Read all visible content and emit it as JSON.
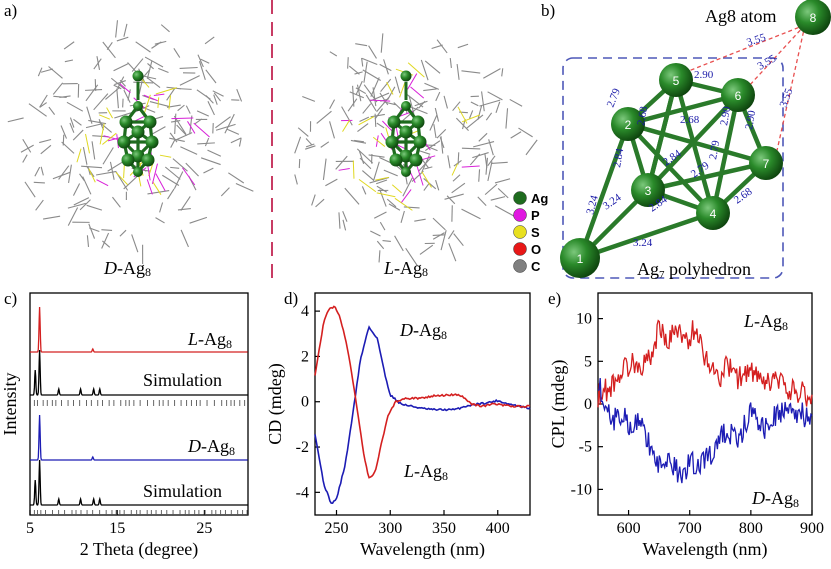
{
  "panels": {
    "a": "a)",
    "b": "b)",
    "c": "c)",
    "d": "d)",
    "e": "e)"
  },
  "panel_a": {
    "left_caption_italic": "D",
    "right_caption_italic": "L",
    "caption_suffix": "-Ag",
    "caption_subscript": "8",
    "legend": [
      {
        "symbol": "Ag",
        "color": "#1e6b1e"
      },
      {
        "symbol": "P",
        "color": "#e018e0"
      },
      {
        "symbol": "S",
        "color": "#e8e020"
      },
      {
        "symbol": "O",
        "color": "#e81818"
      },
      {
        "symbol": "C",
        "color": "#808080"
      }
    ]
  },
  "panel_b": {
    "ag8_title": "Ag8 atom",
    "polyhedron_label": "Ag",
    "polyhedron_sub": "7",
    "polyhedron_suffix": " polyhedron",
    "atoms": [
      "1",
      "2",
      "3",
      "4",
      "5",
      "6",
      "7",
      "8"
    ],
    "ag8_distance": "3.55",
    "bond_labels": [
      "2.79",
      "2.90",
      "2.68",
      "2.84",
      "2.90",
      "2.68",
      "2.84",
      "2.79",
      "2.79",
      "2.90",
      "2.84",
      "2.68",
      "3.24",
      "3.24",
      "3.24"
    ]
  },
  "chart_data": [
    {
      "type": "line",
      "panel": "c",
      "xlabel": "2 Theta (degree)",
      "ylabel": "Intensity",
      "xlim": [
        5,
        30
      ],
      "xticks": [
        5,
        15,
        25
      ],
      "series": [
        {
          "name": "L-Ag8",
          "color": "#d42020",
          "peaks_x": [
            6.1,
            12.2
          ]
        },
        {
          "name": "Simulation",
          "color": "#000000",
          "peaks_x": [
            5.6,
            6.1,
            8.3,
            10.8,
            12.3,
            13.0
          ]
        },
        {
          "name": "D-Ag8",
          "color": "#1c1cb4",
          "peaks_x": [
            6.1,
            12.2
          ]
        },
        {
          "name": "Simulation",
          "color": "#000000",
          "peaks_x": [
            5.6,
            6.1,
            8.3,
            10.8,
            12.3,
            13.0
          ]
        }
      ],
      "labels": {
        "L": "L",
        "D": "D",
        "suffix": "-Ag",
        "sub": "8",
        "simulation": "Simulation"
      }
    },
    {
      "type": "line",
      "panel": "d",
      "xlabel": "Wavelength (nm)",
      "ylabel": "CD (mdeg)",
      "xlim": [
        230,
        430
      ],
      "ylim": [
        -5,
        4.8
      ],
      "xticks": [
        250,
        300,
        350,
        400
      ],
      "yticks": [
        -4,
        -2,
        0,
        2,
        4
      ],
      "series": [
        {
          "name": "D-Ag8",
          "color": "#1c1cb4",
          "x": [
            230,
            238,
            245,
            250,
            258,
            265,
            272,
            280,
            288,
            295,
            300,
            310,
            320,
            330,
            340,
            350,
            360,
            370,
            380,
            390,
            400,
            410,
            420,
            430
          ],
          "y": [
            -1.4,
            -3.6,
            -4.5,
            -4.3,
            -2.8,
            -0.6,
            1.8,
            3.3,
            2.8,
            1.2,
            0.3,
            -0.1,
            -0.2,
            -0.3,
            -0.35,
            -0.35,
            -0.35,
            -0.2,
            -0.1,
            -0.05,
            0.05,
            -0.1,
            -0.2,
            -0.3
          ]
        },
        {
          "name": "L-Ag8",
          "color": "#d42020",
          "x": [
            230,
            238,
            243,
            248,
            253,
            260,
            267,
            275,
            280,
            286,
            292,
            298,
            305,
            315,
            325,
            340,
            355,
            365,
            375,
            385,
            395,
            405,
            415,
            430
          ],
          "y": [
            1.2,
            3.5,
            4.1,
            4.2,
            3.8,
            2.4,
            0.4,
            -2.2,
            -3.4,
            -3.1,
            -1.8,
            -0.6,
            0.0,
            0.15,
            0.15,
            0.25,
            0.3,
            0.3,
            -0.1,
            -0.2,
            -0.1,
            -0.15,
            -0.2,
            -0.2
          ]
        }
      ],
      "labels": {
        "D": "D",
        "L": "L",
        "suffix": "-Ag",
        "sub": "8"
      }
    },
    {
      "type": "line",
      "panel": "e",
      "xlabel": "Wavelength (nm)",
      "ylabel": "CPL (mdeg)",
      "xlim": [
        550,
        900
      ],
      "ylim": [
        -13,
        13
      ],
      "xticks": [
        600,
        700,
        800,
        900
      ],
      "yticks": [
        -10,
        -5,
        0,
        5,
        10
      ],
      "series": [
        {
          "name": "L-Ag8",
          "color": "#d42020",
          "x": [
            550,
            570,
            590,
            610,
            625,
            640,
            650,
            660,
            670,
            680,
            690,
            700,
            710,
            720,
            730,
            740,
            750,
            760,
            780,
            800,
            820,
            840,
            860,
            880,
            900
          ],
          "y": [
            1,
            2,
            4,
            5,
            4.5,
            6,
            9.5,
            7,
            8,
            9,
            7,
            8,
            9,
            6.5,
            5,
            4,
            3,
            4.5,
            3,
            4,
            2,
            3,
            1.5,
            1.5,
            0.5
          ]
        },
        {
          "name": "D-Ag8",
          "color": "#1c1cb4",
          "x": [
            550,
            560,
            575,
            590,
            605,
            620,
            635,
            650,
            665,
            680,
            690,
            700,
            710,
            720,
            730,
            740,
            750,
            760,
            780,
            800,
            820,
            840,
            860,
            880,
            900
          ],
          "y": [
            3,
            0,
            -2,
            -1,
            -3,
            -2,
            -5,
            -7,
            -6,
            -8,
            -9,
            -6,
            -8,
            -7,
            -5.5,
            -6,
            -4,
            -3,
            -4,
            -1,
            -3,
            -1.5,
            -1,
            -1,
            -2
          ]
        }
      ],
      "labels": {
        "L": "L",
        "D": "D",
        "suffix": "-Ag",
        "sub": "8"
      }
    }
  ]
}
